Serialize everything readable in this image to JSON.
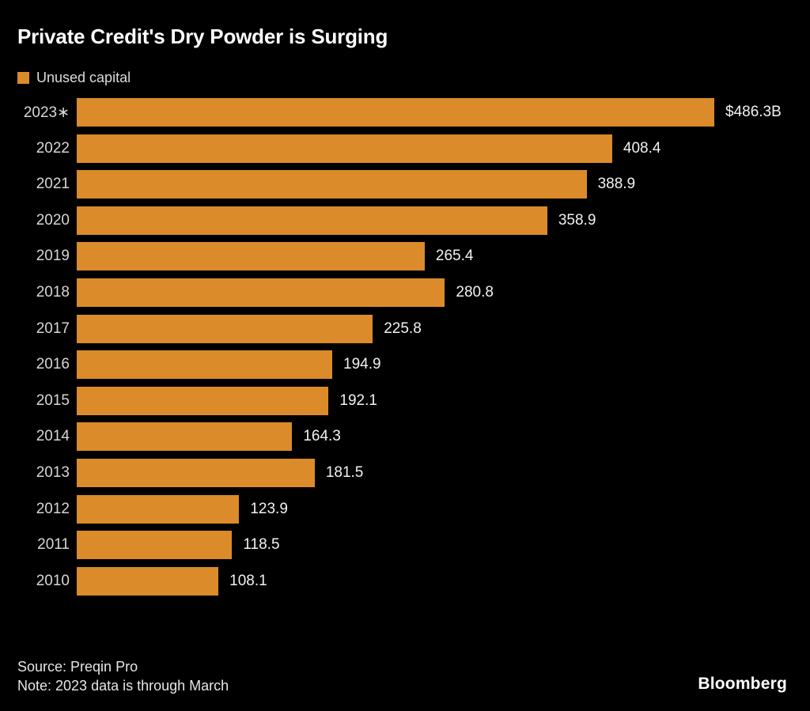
{
  "title": "Private Credit's Dry Powder is Surging",
  "legend": {
    "label": "Unused capital",
    "swatch_color": "#DB8B2A"
  },
  "chart_data": {
    "type": "bar",
    "orientation": "horizontal",
    "title": "Private Credit's Dry Powder is Surging",
    "legend_entries": [
      "Unused capital"
    ],
    "categories": [
      "2023∗",
      "2022",
      "2021",
      "2020",
      "2019",
      "2018",
      "2017",
      "2016",
      "2015",
      "2014",
      "2013",
      "2012",
      "2011",
      "2010"
    ],
    "values": [
      486.3,
      408.4,
      388.9,
      358.9,
      265.4,
      280.8,
      225.8,
      194.9,
      192.1,
      164.3,
      181.5,
      123.9,
      118.5,
      108.1
    ],
    "value_labels": [
      "$486.3B",
      "408.4",
      "388.9",
      "358.9",
      "265.4",
      "280.8",
      "225.8",
      "194.9",
      "192.1",
      "164.3",
      "181.5",
      "123.9",
      "118.5",
      "108.1"
    ],
    "xlim": [
      0,
      486.3
    ],
    "bar_color": "#DB8B2A",
    "grid": "off",
    "legend_position": "top-left",
    "value_label_position": "right-of-bar"
  },
  "footer": {
    "source": "Source: Preqin Pro",
    "note": "Note: 2023 data is through March",
    "logo": "Bloomberg"
  },
  "colors": {
    "background": "#000000",
    "accent_orange": "#DB8B2A",
    "title_text": "#ffffff",
    "axis_text": "#d6d6d6",
    "value_text": "#f2f2f2"
  }
}
